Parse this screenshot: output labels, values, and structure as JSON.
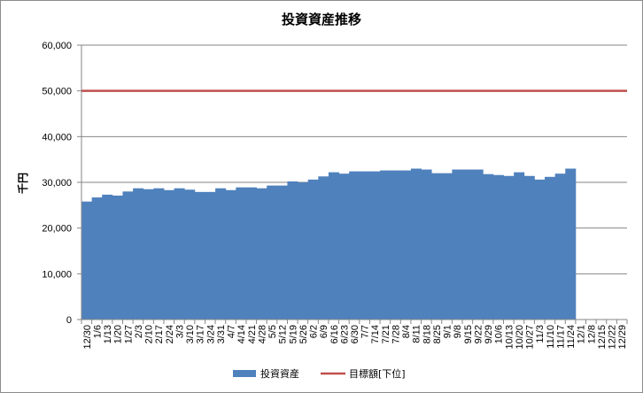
{
  "chart_data": {
    "type": "bar",
    "title": "投資資産推移",
    "xlabel": "",
    "ylabel": "千円",
    "ylim": [
      0,
      60000
    ],
    "yticks": [
      "0",
      "10,000",
      "20,000",
      "30,000",
      "40,000",
      "50,000",
      "60,000"
    ],
    "grid": "horizontal",
    "legend_position": "bottom",
    "categories": [
      "12/30",
      "1/6",
      "1/13",
      "1/20",
      "1/27",
      "2/3",
      "2/10",
      "2/17",
      "2/24",
      "3/3",
      "3/10",
      "3/17",
      "3/24",
      "3/31",
      "4/7",
      "4/14",
      "4/21",
      "4/28",
      "5/5",
      "5/12",
      "5/19",
      "5/26",
      "6/2",
      "6/9",
      "6/16",
      "6/23",
      "6/30",
      "7/7",
      "7/14",
      "7/21",
      "7/28",
      "8/4",
      "8/11",
      "8/18",
      "8/25",
      "9/1",
      "9/8",
      "9/15",
      "9/22",
      "9/29",
      "10/6",
      "10/13",
      "10/20",
      "10/27",
      "11/3",
      "11/10",
      "11/17",
      "11/24",
      "12/1",
      "12/8",
      "12/15",
      "12/22",
      "12/29"
    ],
    "series": [
      {
        "name": "投資資産",
        "type": "bar",
        "color": "#4f81bd",
        "values": [
          25800,
          26700,
          27300,
          27100,
          28000,
          28700,
          28500,
          28700,
          28300,
          28700,
          28400,
          27900,
          27900,
          28700,
          28300,
          28900,
          28900,
          28700,
          29300,
          29300,
          30200,
          30000,
          30600,
          31300,
          32200,
          31900,
          32400,
          32400,
          32400,
          32600,
          32600,
          32600,
          33000,
          32800,
          32000,
          32000,
          32800,
          32800,
          32800,
          31800,
          31600,
          31400,
          32200,
          31400,
          30600,
          31200,
          31900,
          33000,
          null,
          null,
          null,
          null,
          null
        ]
      },
      {
        "name": "目標額[下位]",
        "type": "line",
        "color": "#c0504d",
        "values": [
          50000,
          50000,
          50000,
          50000,
          50000,
          50000,
          50000,
          50000,
          50000,
          50000,
          50000,
          50000,
          50000,
          50000,
          50000,
          50000,
          50000,
          50000,
          50000,
          50000,
          50000,
          50000,
          50000,
          50000,
          50000,
          50000,
          50000,
          50000,
          50000,
          50000,
          50000,
          50000,
          50000,
          50000,
          50000,
          50000,
          50000,
          50000,
          50000,
          50000,
          50000,
          50000,
          50000,
          50000,
          50000,
          50000,
          50000,
          50000,
          50000,
          50000,
          50000,
          50000,
          50000
        ]
      }
    ]
  }
}
